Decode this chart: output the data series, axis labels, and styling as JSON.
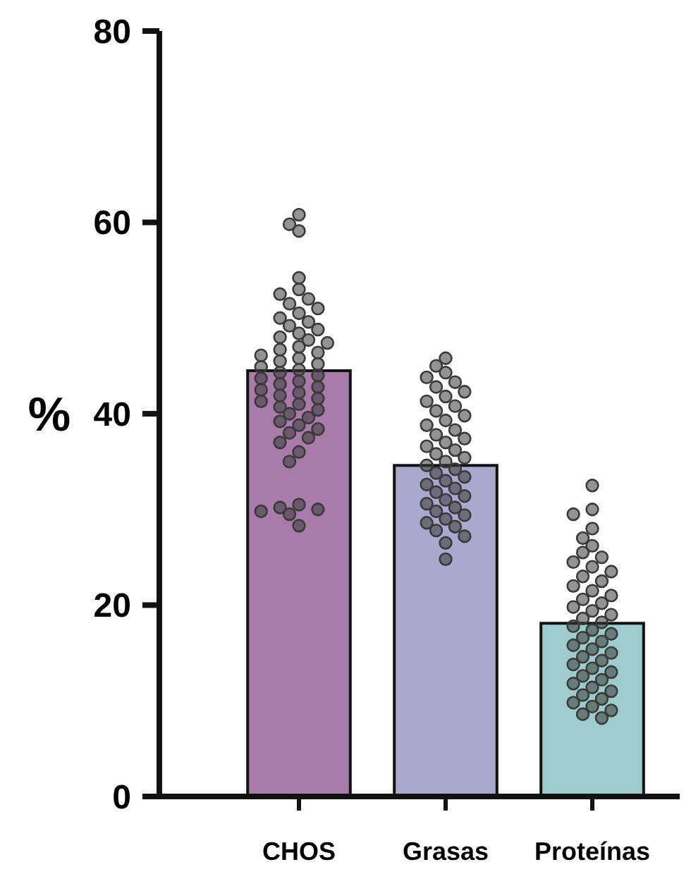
{
  "chart_data": {
    "type": "bar",
    "ylabel": "%",
    "categories": [
      "CHOS",
      "Grasas",
      "Proteínas"
    ],
    "ylim": [
      0,
      80
    ],
    "yticks": [
      0,
      20,
      40,
      60,
      80
    ],
    "marker": "circle",
    "series": [
      {
        "colors": [
          "#a87ba8",
          "#a9a9cf",
          "#9ecbcb"
        ],
        "values": [
          44.5,
          34.6,
          18.1
        ]
      },
      {
        "type": "scatter",
        "color": "#3a3a3a",
        "x": [
          "CHOS",
          "CHOS",
          "CHOS",
          "CHOS",
          "CHOS",
          "CHOS",
          "CHOS",
          "CHOS",
          "CHOS",
          "CHOS",
          "CHOS",
          "CHOS",
          "CHOS",
          "CHOS",
          "CHOS",
          "CHOS",
          "CHOS",
          "CHOS",
          "CHOS",
          "CHOS",
          "CHOS",
          "CHOS",
          "CHOS",
          "CHOS",
          "CHOS",
          "CHOS",
          "CHOS",
          "CHOS",
          "CHOS",
          "CHOS",
          "CHOS",
          "CHOS",
          "CHOS",
          "CHOS",
          "CHOS",
          "CHOS",
          "CHOS",
          "CHOS",
          "CHOS",
          "CHOS",
          "CHOS",
          "CHOS",
          "CHOS",
          "CHOS",
          "CHOS",
          "CHOS",
          "CHOS",
          "CHOS",
          "CHOS",
          "CHOS",
          "CHOS",
          "CHOS",
          "CHOS",
          "CHOS",
          "CHOS",
          "CHOS",
          "CHOS"
        ],
        "values": [
          60.8,
          59.8,
          59.1,
          54.2,
          53.0,
          52.5,
          52.0,
          51.5,
          51.0,
          50.5,
          50.0,
          49.6,
          49.2,
          48.8,
          48.4,
          48.0,
          47.7,
          47.4,
          47.0,
          46.7,
          46.4,
          46.1,
          45.8,
          45.5,
          45.2,
          44.9,
          44.6,
          44.3,
          44.0,
          43.7,
          43.4,
          43.1,
          42.8,
          42.5,
          42.2,
          41.9,
          41.6,
          41.3,
          41.0,
          40.7,
          40.4,
          40.0,
          39.6,
          39.2,
          38.8,
          38.4,
          38.0,
          37.5,
          37.0,
          36.0,
          35.0,
          30.5,
          30.2,
          30.0,
          29.8,
          29.5,
          28.3
        ]
      },
      {
        "type": "scatter",
        "color": "#3a3a3a",
        "x": [
          "Grasas",
          "Grasas",
          "Grasas",
          "Grasas",
          "Grasas",
          "Grasas",
          "Grasas",
          "Grasas",
          "Grasas",
          "Grasas",
          "Grasas",
          "Grasas",
          "Grasas",
          "Grasas",
          "Grasas",
          "Grasas",
          "Grasas",
          "Grasas",
          "Grasas",
          "Grasas",
          "Grasas",
          "Grasas",
          "Grasas",
          "Grasas",
          "Grasas",
          "Grasas",
          "Grasas",
          "Grasas",
          "Grasas",
          "Grasas",
          "Grasas",
          "Grasas",
          "Grasas",
          "Grasas",
          "Grasas",
          "Grasas",
          "Grasas",
          "Grasas",
          "Grasas",
          "Grasas",
          "Grasas",
          "Grasas",
          "Grasas",
          "Grasas"
        ],
        "values": [
          45.8,
          45.0,
          44.3,
          43.8,
          43.3,
          42.8,
          42.3,
          41.8,
          41.3,
          40.8,
          40.3,
          39.8,
          39.3,
          38.8,
          38.3,
          37.8,
          37.4,
          37.0,
          36.6,
          36.2,
          35.8,
          35.4,
          35.0,
          34.6,
          34.2,
          33.8,
          33.4,
          33.0,
          32.6,
          32.2,
          31.8,
          31.4,
          31.0,
          30.6,
          30.2,
          29.8,
          29.4,
          29.0,
          28.6,
          28.2,
          27.8,
          27.2,
          26.5,
          24.8
        ]
      },
      {
        "type": "scatter",
        "color": "#3a3a3a",
        "x": [
          "Proteínas",
          "Proteínas",
          "Proteínas",
          "Proteínas",
          "Proteínas",
          "Proteínas",
          "Proteínas",
          "Proteínas",
          "Proteínas",
          "Proteínas",
          "Proteínas",
          "Proteínas",
          "Proteínas",
          "Proteínas",
          "Proteínas",
          "Proteínas",
          "Proteínas",
          "Proteínas",
          "Proteínas",
          "Proteínas",
          "Proteínas",
          "Proteínas",
          "Proteínas",
          "Proteínas",
          "Proteínas",
          "Proteínas",
          "Proteínas",
          "Proteínas",
          "Proteínas",
          "Proteínas",
          "Proteínas",
          "Proteínas",
          "Proteínas",
          "Proteínas",
          "Proteínas",
          "Proteínas",
          "Proteínas",
          "Proteínas",
          "Proteínas",
          "Proteínas",
          "Proteínas",
          "Proteínas",
          "Proteínas",
          "Proteínas",
          "Proteínas",
          "Proteínas",
          "Proteínas",
          "Proteínas"
        ],
        "values": [
          32.5,
          30.0,
          29.5,
          28.0,
          27.0,
          26.2,
          25.5,
          25.0,
          24.5,
          24.0,
          23.5,
          23.0,
          22.5,
          22.0,
          21.5,
          21.0,
          20.6,
          20.2,
          19.8,
          19.4,
          19.0,
          18.6,
          18.2,
          17.8,
          17.4,
          17.0,
          16.6,
          16.2,
          15.8,
          15.4,
          15.0,
          14.6,
          14.2,
          13.8,
          13.4,
          13.0,
          12.6,
          12.2,
          11.8,
          11.4,
          11.0,
          10.6,
          10.2,
          9.8,
          9.4,
          9.0,
          8.6,
          8.2
        ]
      }
    ]
  }
}
